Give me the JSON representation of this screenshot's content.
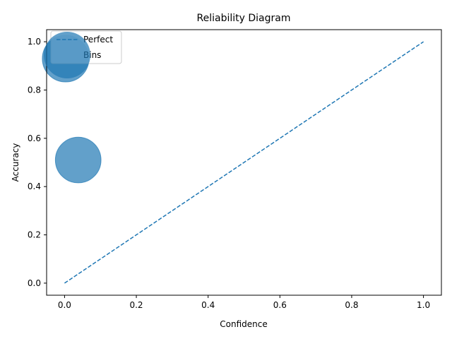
{
  "chart_data": {
    "type": "scatter",
    "title": "Reliability Diagram",
    "xlabel": "Confidence",
    "ylabel": "Accuracy",
    "xlim": [
      -0.05,
      1.05
    ],
    "ylim": [
      -0.05,
      1.05
    ],
    "xticks": [
      0.0,
      0.2,
      0.4,
      0.6,
      0.8,
      1.0
    ],
    "yticks": [
      0.0,
      0.2,
      0.4,
      0.6,
      0.8,
      1.0
    ],
    "xtick_labels": [
      "0.0",
      "0.2",
      "0.4",
      "0.6",
      "0.8",
      "1.0"
    ],
    "ytick_labels": [
      "0.0",
      "0.2",
      "0.4",
      "0.6",
      "0.8",
      "1.0"
    ],
    "grid": false,
    "legend_position": "top-left",
    "series": [
      {
        "name": "Perfect",
        "kind": "line",
        "style": "dashed",
        "color": "#1f77b4",
        "x": [
          0.0,
          1.0
        ],
        "y": [
          0.0,
          1.0
        ]
      },
      {
        "name": "Bins",
        "kind": "scatter",
        "color": "#1f77b4",
        "alpha": 0.7,
        "points": [
          {
            "x": 0.003,
            "y": 0.93,
            "size": 2500
          },
          {
            "x": 0.038,
            "y": 0.51,
            "size": 2400
          }
        ]
      }
    ]
  }
}
